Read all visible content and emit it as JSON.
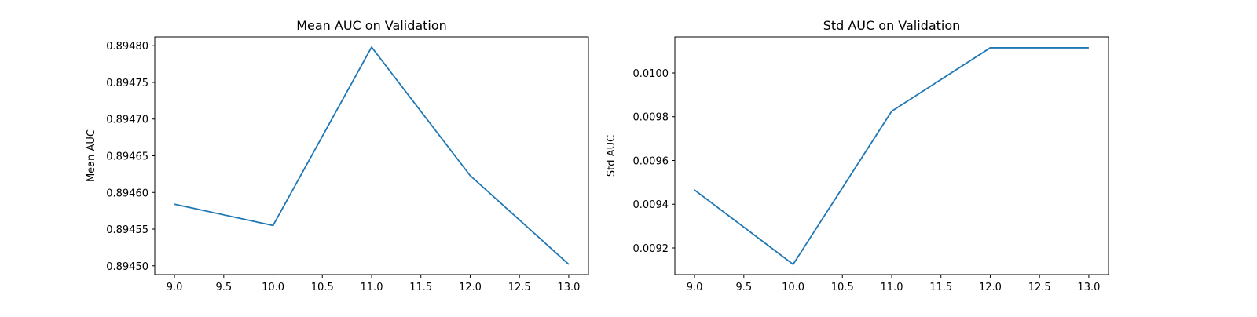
{
  "colors": {
    "series": "#1f77b4",
    "background": "#ffffff",
    "axes": "#000000"
  },
  "chart_data": [
    {
      "type": "line",
      "title": "Mean AUC on Validation",
      "xlabel": "",
      "ylabel": "Mean AUC",
      "x": [
        9.0,
        10.0,
        11.0,
        12.0,
        13.0
      ],
      "series": [
        {
          "values": [
            0.894584,
            0.894555,
            0.894798,
            0.894623,
            0.894502
          ]
        }
      ],
      "xlim": [
        8.8,
        13.2
      ],
      "ylim": [
        0.894488,
        0.894812
      ],
      "xticks": [
        9.0,
        9.5,
        10.0,
        10.5,
        11.0,
        11.5,
        12.0,
        12.5,
        13.0
      ],
      "xtick_labels": [
        "9.0",
        "9.5",
        "10.0",
        "10.5",
        "11.0",
        "11.5",
        "12.0",
        "12.5",
        "13.0"
      ],
      "yticks": [
        0.8945,
        0.89455,
        0.8946,
        0.89465,
        0.8947,
        0.89475,
        0.8948
      ],
      "ytick_labels": [
        "0.89450",
        "0.89455",
        "0.89460",
        "0.89465",
        "0.89470",
        "0.89475",
        "0.89480"
      ],
      "grid": false,
      "legend": "none"
    },
    {
      "type": "line",
      "title": "Std AUC on Validation",
      "xlabel": "",
      "ylabel": "Std AUC",
      "x": [
        9.0,
        10.0,
        11.0,
        12.0,
        13.0
      ],
      "series": [
        {
          "values": [
            0.009465,
            0.009125,
            0.009825,
            0.010115,
            0.010115
          ]
        }
      ],
      "xlim": [
        8.8,
        13.2
      ],
      "ylim": [
        0.009078,
        0.010165
      ],
      "xticks": [
        9.0,
        9.5,
        10.0,
        10.5,
        11.0,
        11.5,
        12.0,
        12.5,
        13.0
      ],
      "xtick_labels": [
        "9.0",
        "9.5",
        "10.0",
        "10.5",
        "11.0",
        "11.5",
        "12.0",
        "12.5",
        "13.0"
      ],
      "yticks": [
        0.0092,
        0.0094,
        0.0096,
        0.0098,
        0.01
      ],
      "ytick_labels": [
        "0.0092",
        "0.0094",
        "0.0096",
        "0.0098",
        "0.0100"
      ],
      "grid": false,
      "legend": "none"
    }
  ]
}
